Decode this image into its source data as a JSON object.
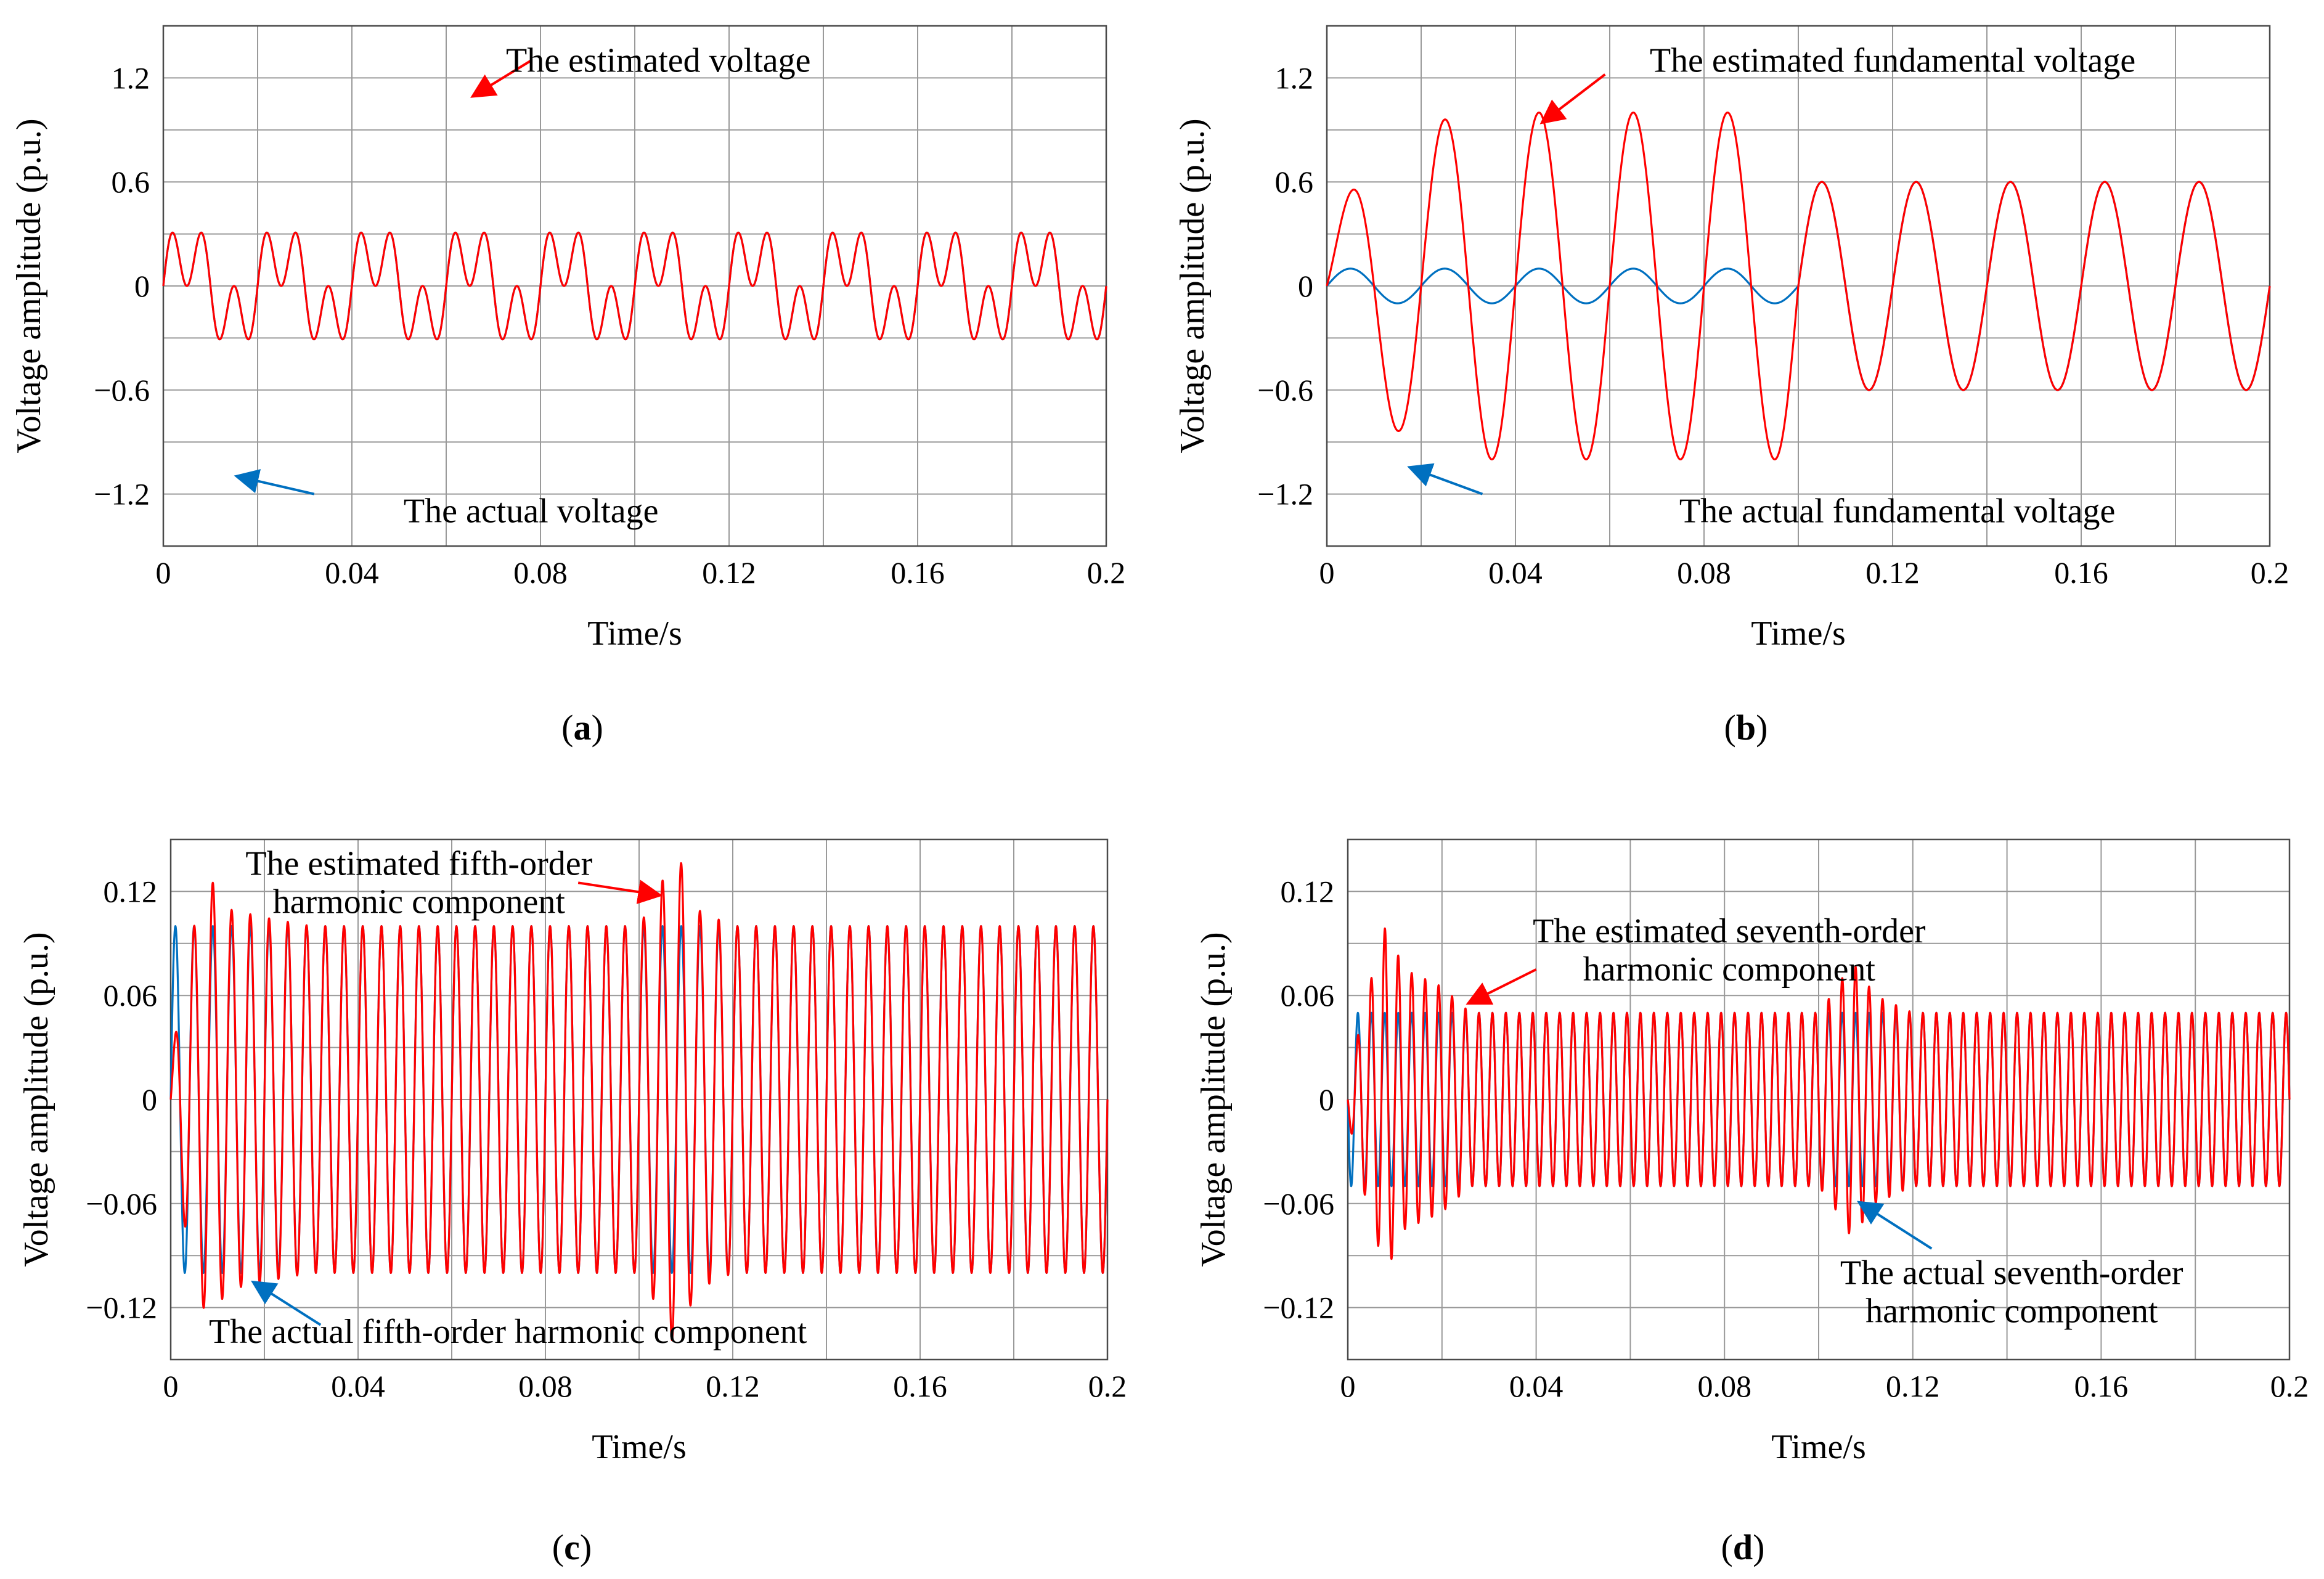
{
  "colors": {
    "actual": "#0070C0",
    "estimated": "#FF0000",
    "grid": "#9a9a9a",
    "axis": "#4a4a4a"
  },
  "chart_data": [
    {
      "id": "a",
      "type": "line",
      "panel_label": "a",
      "xlabel": "Time/s",
      "ylabel": "Voltage amplitude (p.u.)",
      "xlim": [
        0,
        0.2
      ],
      "ylim": [
        -1.5,
        1.5
      ],
      "xticks": [
        0,
        0.04,
        0.08,
        0.12,
        0.16,
        0.2
      ],
      "xtick_labels": [
        "0",
        "0.04",
        "0.08",
        "0.12",
        "0.16",
        "0.2"
      ],
      "xgrid": [
        0,
        0.02,
        0.04,
        0.06,
        0.08,
        0.1,
        0.12,
        0.14,
        0.16,
        0.18,
        0.2
      ],
      "yticks": [
        -1.2,
        -0.6,
        0,
        0.6,
        1.2
      ],
      "ytick_labels": [
        "−1.2",
        "−0.6",
        "0",
        "0.6",
        "1.2"
      ],
      "ygrid": [
        -1.5,
        -1.2,
        -0.9,
        -0.6,
        -0.3,
        0,
        0.3,
        0.6,
        0.9,
        1.2,
        1.5
      ],
      "series": [
        {
          "name": "actual",
          "f": 50,
          "a1": [
            [
              0,
              0.2
            ],
            [
              0.2,
              0.2
            ]
          ],
          "s1": 1,
          "a2": 0,
          "harmonics": [
            [
              3,
              0.25
            ]
          ]
        },
        {
          "name": "estimated",
          "f": 50,
          "a1": [
            [
              0,
              0.2
            ],
            [
              0.2,
              0.2
            ]
          ],
          "s1": 1,
          "a2": 0,
          "harmonics": [
            [
              3,
              0.25
            ]
          ]
        }
      ],
      "annotations": [
        {
          "name": "estimated-label",
          "text": "The estimated voltage",
          "color": "estimated",
          "x": 0.105,
          "y": 1.3,
          "ax": 0.066,
          "ay": 1.1,
          "bx": 0.078,
          "by": 1.3
        },
        {
          "name": "actual-label",
          "text": "The actual voltage",
          "color": "actual",
          "x": 0.078,
          "y": -1.3,
          "ax": 0.016,
          "ay": -1.1,
          "bx": 0.032,
          "by": -1.2
        }
      ]
    },
    {
      "id": "b",
      "type": "line",
      "panel_label": "b",
      "xlabel": "Time/s",
      "ylabel": "Voltage amplitude (p.u.)",
      "xlim": [
        0,
        0.2
      ],
      "ylim": [
        -1.5,
        1.5
      ],
      "xticks": [
        0,
        0.04,
        0.08,
        0.12,
        0.16,
        0.2
      ],
      "xtick_labels": [
        "0",
        "0.04",
        "0.08",
        "0.12",
        "0.16",
        "0.2"
      ],
      "xgrid": [
        0,
        0.02,
        0.04,
        0.06,
        0.08,
        0.1,
        0.12,
        0.14,
        0.16,
        0.18,
        0.2
      ],
      "yticks": [
        -1.2,
        -0.6,
        0,
        0.6,
        1.2
      ],
      "ytick_labels": [
        "−1.2",
        "−0.6",
        "0",
        "0.6",
        "1.2"
      ],
      "ygrid": [
        -1.5,
        -1.2,
        -0.9,
        -0.6,
        -0.3,
        0,
        0.3,
        0.6,
        0.9,
        1.2,
        1.5
      ],
      "series": [
        {
          "name": "actual",
          "f": 50,
          "a1": [
            [
              0,
              0.1
            ],
            [
              1.0,
              0.1
            ]
          ],
          "s1": 1,
          "a2": 0.6,
          "harmonics": []
        },
        {
          "name": "estimated",
          "f": 50,
          "a1": [
            [
              0,
              0.33
            ],
            [
              0.01,
              0.75
            ],
            [
              0.02,
              0.92
            ],
            [
              0.03,
              1.0
            ],
            [
              0.1,
              1.0
            ],
            [
              0.108,
              0.88
            ],
            [
              0.116,
              0.68
            ],
            [
              0.124,
              0.62
            ],
            [
              0.13,
              0.6
            ]
          ],
          "s1": 1,
          "a2": 0.6,
          "harmonics": []
        }
      ],
      "annotations": [
        {
          "name": "estimated-label",
          "text": "The estimated fundamental voltage",
          "color": "estimated",
          "x": 0.12,
          "y": 1.3,
          "ax": 0.046,
          "ay": 0.95,
          "bx": 0.059,
          "by": 1.22
        },
        {
          "name": "actual-label",
          "text": "The actual fundamental voltage",
          "color": "actual",
          "x": 0.121,
          "y": -1.3,
          "ax": 0.018,
          "ay": -1.05,
          "bx": 0.033,
          "by": -1.2
        }
      ]
    },
    {
      "id": "c",
      "type": "line",
      "panel_label": "c",
      "xlabel": "Time/s",
      "ylabel": "Voltage amplitude (p.u.)",
      "xlim": [
        0,
        0.2
      ],
      "ylim": [
        -0.15,
        0.15
      ],
      "xticks": [
        0,
        0.04,
        0.08,
        0.12,
        0.16,
        0.2
      ],
      "xtick_labels": [
        "0",
        "0.04",
        "0.08",
        "0.12",
        "0.16",
        "0.2"
      ],
      "xgrid": [
        0,
        0.02,
        0.04,
        0.06,
        0.08,
        0.1,
        0.12,
        0.14,
        0.16,
        0.18,
        0.2
      ],
      "yticks": [
        -0.12,
        -0.06,
        0,
        0.06,
        0.12
      ],
      "ytick_labels": [
        "−0.12",
        "−0.06",
        "0",
        "0.06",
        "0.12"
      ],
      "ygrid": [
        -0.15,
        -0.12,
        -0.09,
        -0.06,
        -0.03,
        0,
        0.03,
        0.06,
        0.09,
        0.12,
        0.15
      ],
      "series": [
        {
          "name": "actual",
          "f": 250,
          "a1": [
            [
              0,
              0.1
            ],
            [
              1.0,
              0.1
            ]
          ],
          "s1": 1,
          "a2": 0,
          "harmonics": []
        },
        {
          "name": "estimated",
          "f": 250,
          "a1": [
            [
              0,
              0.02
            ],
            [
              0.004,
              0.09
            ],
            [
              0.008,
              0.13
            ],
            [
              0.012,
              0.11
            ],
            [
              0.02,
              0.105
            ],
            [
              0.03,
              0.1
            ],
            [
              0.1,
              0.1
            ],
            [
              0.104,
              0.12
            ],
            [
              0.108,
              0.145
            ],
            [
              0.112,
              0.11
            ],
            [
              0.12,
              0.1
            ]
          ],
          "s1": 1,
          "a2": 0,
          "harmonics": []
        }
      ],
      "annotations": [
        {
          "name": "estimated-label",
          "text": "The estimated fifth-order",
          "text2": "harmonic component",
          "color": "estimated",
          "x": 0.053,
          "y": 0.136,
          "ax": 0.104,
          "ay": 0.118,
          "bx": 0.087,
          "by": 0.125
        },
        {
          "name": "actual-label",
          "text": "The actual fifth-order harmonic component",
          "color": "actual",
          "x": 0.072,
          "y": -0.134,
          "ax": 0.018,
          "ay": -0.106,
          "bx": 0.032,
          "by": -0.13
        }
      ]
    },
    {
      "id": "d",
      "type": "line",
      "panel_label": "d",
      "xlabel": "Time/s",
      "ylabel": "Voltage amplitude (p.u.)",
      "xlim": [
        0,
        0.2
      ],
      "ylim": [
        -0.15,
        0.15
      ],
      "xticks": [
        0,
        0.04,
        0.08,
        0.12,
        0.16,
        0.2
      ],
      "xtick_labels": [
        "0",
        "0.04",
        "0.08",
        "0.12",
        "0.16",
        "0.2"
      ],
      "xgrid": [
        0,
        0.02,
        0.04,
        0.06,
        0.08,
        0.1,
        0.12,
        0.14,
        0.16,
        0.18,
        0.2
      ],
      "yticks": [
        -0.12,
        -0.06,
        0,
        0.06,
        0.12
      ],
      "ytick_labels": [
        "−0.12",
        "−0.06",
        "0",
        "0.06",
        "0.12"
      ],
      "ygrid": [
        -0.15,
        -0.12,
        -0.09,
        -0.06,
        -0.03,
        0,
        0.03,
        0.06,
        0.09,
        0.12,
        0.15
      ],
      "series": [
        {
          "name": "actual",
          "f": 350,
          "a1": [
            [
              0,
              0.05
            ],
            [
              1.0,
              0.05
            ]
          ],
          "s1": -1,
          "a2": 0,
          "harmonics": []
        },
        {
          "name": "estimated",
          "f": 350,
          "a1": [
            [
              0,
              0.01
            ],
            [
              0.004,
              0.06
            ],
            [
              0.008,
              0.1
            ],
            [
              0.012,
              0.075
            ],
            [
              0.02,
              0.065
            ],
            [
              0.026,
              0.05
            ],
            [
              0.1,
              0.05
            ],
            [
              0.104,
              0.065
            ],
            [
              0.107,
              0.08
            ],
            [
              0.112,
              0.06
            ],
            [
              0.12,
              0.05
            ]
          ],
          "s1": -1,
          "a2": 0,
          "harmonics": []
        }
      ],
      "annotations": [
        {
          "name": "estimated-label",
          "text": "The estimated seventh-order",
          "text2": "harmonic component",
          "color": "estimated",
          "x": 0.081,
          "y": 0.097,
          "ax": 0.026,
          "ay": 0.056,
          "bx": 0.04,
          "by": 0.075
        },
        {
          "name": "actual-label",
          "text": "The actual seventh-order",
          "text2": "harmonic component",
          "color": "actual",
          "x": 0.141,
          "y": -0.1,
          "ax": 0.109,
          "ay": -0.06,
          "bx": 0.124,
          "by": -0.086
        }
      ]
    }
  ]
}
